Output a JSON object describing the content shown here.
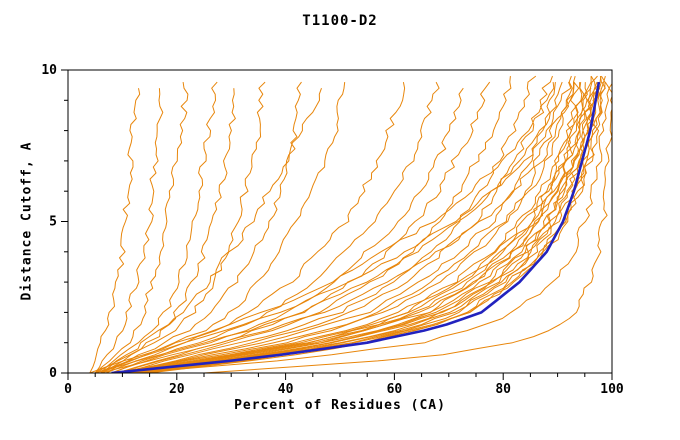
{
  "chart_data": {
    "type": "line",
    "title": "T1100-D2",
    "xlabel": "Percent of Residues (CA)",
    "ylabel": "Distance Cutoff, A",
    "xlim": [
      0,
      100
    ],
    "ylim": [
      0,
      10
    ],
    "x_major_ticks": [
      0,
      20,
      40,
      60,
      80,
      100
    ],
    "x_minor_step": 5,
    "y_major_ticks": [
      0,
      5,
      10
    ],
    "y_minor_step": 1,
    "grid": false,
    "legend": "none",
    "colors": {
      "model": "#E8860B",
      "highlight": "#2222BE",
      "axis": "#000000",
      "background": "#ffffff"
    },
    "cutoffs": [
      0,
      0.5,
      1,
      1.5,
      2,
      3,
      4,
      5,
      6,
      7,
      8,
      9,
      10
    ],
    "series": [
      {
        "percents": [
          4,
          5,
          6,
          7,
          8,
          9,
          10,
          10.5,
          11,
          11.5,
          12,
          12.5,
          13
        ]
      },
      {
        "percents": [
          5,
          7,
          9,
          10,
          11,
          12.5,
          14,
          15,
          15.5,
          16,
          16.5,
          17,
          17.5
        ]
      },
      {
        "percents": [
          5,
          8,
          11,
          13,
          14,
          15.5,
          17,
          18,
          19,
          20,
          21,
          21.5,
          22
        ]
      },
      {
        "percents": [
          6,
          9,
          13,
          16,
          18,
          20,
          22,
          23,
          24,
          25,
          26,
          26.5,
          27
        ]
      },
      {
        "percents": [
          5,
          10,
          15,
          18,
          20,
          23,
          25,
          27,
          28,
          29,
          30,
          30.5,
          31
        ]
      },
      {
        "percents": [
          6,
          11,
          16,
          20,
          23,
          27,
          29,
          31,
          32.5,
          34,
          35,
          35.5,
          36
        ]
      },
      {
        "percents": [
          7,
          12,
          18,
          23,
          26,
          31,
          34,
          37,
          39,
          40.5,
          42,
          42.5,
          43
        ]
      },
      {
        "percents": [
          6,
          13,
          20,
          26,
          30,
          35,
          39,
          42,
          45,
          47,
          49,
          50,
          51
        ]
      },
      {
        "percents": [
          6,
          10,
          14,
          18,
          21,
          26,
          30,
          34,
          37,
          40,
          43,
          46,
          48
        ]
      },
      {
        "percents": [
          7,
          14,
          22,
          28,
          33,
          41,
          46,
          51,
          54,
          57,
          59,
          61,
          62
        ]
      },
      {
        "percents": [
          8,
          15,
          24,
          31,
          37,
          45,
          51,
          56,
          60,
          63,
          65,
          67,
          69
        ]
      },
      {
        "percents": [
          8,
          16,
          26,
          34,
          40,
          49,
          55,
          61,
          65,
          68,
          70,
          72,
          74
        ]
      },
      {
        "percents": [
          9,
          18,
          28,
          36,
          43,
          52,
          59,
          64,
          68,
          71,
          74,
          76,
          78
        ]
      },
      {
        "percents": [
          9,
          19,
          30,
          39,
          46,
          56,
          63,
          68,
          72,
          75,
          78,
          80,
          82
        ]
      },
      {
        "percents": [
          10,
          20,
          32,
          42,
          50,
          60,
          67,
          72,
          76,
          79,
          82,
          84,
          86
        ]
      },
      {
        "percents": [
          10,
          22,
          34,
          44,
          52,
          62,
          69,
          75,
          79,
          82,
          85,
          87,
          89
        ]
      },
      {
        "percents": [
          11,
          23,
          36,
          46,
          55,
          65,
          72,
          78,
          82,
          85,
          87,
          89,
          91
        ]
      },
      {
        "percents": [
          8,
          25,
          40,
          50,
          58,
          68,
          75,
          81,
          85,
          88,
          90,
          92,
          93
        ]
      },
      {
        "percents": [
          9,
          27,
          43,
          54,
          62,
          72,
          79,
          84,
          88,
          90,
          92,
          94,
          95
        ]
      },
      {
        "percents": [
          10,
          30,
          46,
          57,
          65,
          75,
          81,
          86,
          89,
          92,
          94,
          95,
          96
        ]
      },
      {
        "percents": [
          11,
          32,
          48,
          60,
          68,
          77,
          83,
          88,
          91,
          93,
          95,
          96,
          97
        ]
      },
      {
        "percents": [
          12,
          34,
          50,
          62,
          70,
          79,
          85,
          89,
          92,
          94,
          96,
          97,
          98
        ]
      },
      {
        "percents": [
          9,
          28,
          44,
          56,
          64,
          74,
          80,
          85,
          89,
          91,
          93,
          95,
          96
        ]
      },
      {
        "percents": [
          13,
          35,
          52,
          64,
          72,
          80,
          86,
          90,
          93,
          95,
          96,
          97,
          98
        ]
      },
      {
        "percents": [
          10,
          31,
          47,
          59,
          67,
          76,
          82,
          87,
          90,
          93,
          94,
          96,
          97
        ]
      },
      {
        "percents": [
          14,
          36,
          53,
          65,
          73,
          81,
          87,
          91,
          93,
          95,
          97,
          98,
          98.5
        ]
      },
      {
        "percents": [
          8,
          26,
          42,
          53,
          61,
          71,
          78,
          83,
          87,
          90,
          92,
          93,
          94
        ]
      },
      {
        "percents": [
          12,
          33,
          49,
          61,
          69,
          78,
          84,
          88,
          91,
          94,
          95,
          97,
          97.5
        ]
      },
      {
        "percents": [
          11,
          29,
          45,
          57,
          66,
          75,
          82,
          86,
          90,
          92,
          94,
          95,
          96.5
        ]
      },
      {
        "percents": [
          13,
          34,
          51,
          63,
          71,
          80,
          85,
          90,
          92,
          94,
          96,
          97,
          98
        ]
      },
      {
        "percents": [
          15,
          38,
          55,
          66,
          74,
          82,
          88,
          92,
          94,
          96,
          97,
          98,
          99
        ]
      },
      {
        "percents": [
          10,
          28,
          44,
          55,
          63,
          73,
          80,
          85,
          88,
          91,
          93,
          94,
          95
        ]
      },
      {
        "percents": [
          12,
          32,
          48,
          60,
          69,
          78,
          84,
          88,
          91,
          93,
          95,
          96,
          97
        ]
      },
      {
        "percents": [
          14,
          37,
          54,
          66,
          74,
          82,
          87,
          91,
          94,
          96,
          97,
          98,
          98.5
        ]
      },
      {
        "percents": [
          9,
          24,
          38,
          49,
          57,
          67,
          74,
          80,
          84,
          87,
          90,
          92,
          93
        ]
      },
      {
        "percents": [
          5,
          15,
          25,
          35,
          43,
          55,
          64,
          72,
          78,
          83,
          87,
          90,
          92
        ]
      },
      {
        "percents": [
          6,
          17,
          28,
          38,
          47,
          59,
          68,
          76,
          82,
          86,
          89,
          92,
          94
        ]
      },
      {
        "percents": [
          4,
          12,
          20,
          28,
          36,
          48,
          58,
          67,
          74,
          80,
          85,
          88,
          91
        ]
      },
      {
        "percents": [
          5,
          13,
          22,
          31,
          39,
          52,
          62,
          71,
          78,
          84,
          88,
          91,
          93
        ]
      },
      {
        "percents": [
          12,
          45,
          65,
          75,
          82,
          89,
          93,
          95,
          96.5,
          97.5,
          98,
          99,
          99.5
        ]
      },
      {
        "percents": [
          25,
          65,
          82,
          90,
          93.5,
          96,
          97.5,
          98.5,
          99,
          99.3,
          99.5,
          99.7,
          99.9
        ]
      },
      {
        "highlight": true,
        "percents": [
          8,
          35,
          55,
          68,
          76,
          83,
          88,
          91,
          93,
          94.5,
          96,
          97,
          98
        ]
      }
    ]
  }
}
